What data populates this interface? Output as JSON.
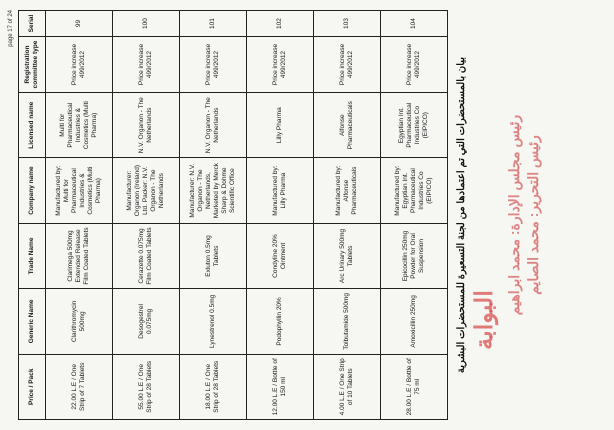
{
  "header": {
    "page": "page 17 of 24"
  },
  "table": {
    "columns": [
      "Serial",
      "Registration committee type",
      "Licensed name",
      "Company name",
      "Trade Name",
      "Generic Name",
      "Price / Pack"
    ],
    "rows": [
      [
        "99",
        "Price increase 499/2012",
        "Multi for Pharmaceutical Industries & Cosmetics (Multi Pharma)",
        "Manufactured by: Multi for Pharmaceutical Industries & Cosmetics (Multi Pharma)",
        "Clarimega 500mg Extended Release Film Coated Tablets",
        "Clarithromycin 500mg",
        "22.00 L.E / One Strip of 7 Tablets"
      ],
      [
        "100",
        "Price increase 499/2012",
        "N.V. Organon - The Netherlands",
        "Manufacturer: Organon (Ireland) Ltd. Packer: N.V. Organon - The Netherlands",
        "Cerazette 0.075mg Film Coated Tablets",
        "Desogestrel 0.075mg",
        "55.00 L.E / One Strip of 28 Tablets"
      ],
      [
        "101",
        "Price increase 499/2012",
        "N.V. Organon - The Netherlands",
        "Manufacturer: N.V. Organon - The Netherlands, Marketed by Merck Sharp & Dohme Scientific Office",
        "Exluton 0.5mg Tablets",
        "Lynestrenol 0.5mg",
        "18.00 L.E / One Strip of 28 Tablets"
      ],
      [
        "102",
        "Price increase 499/2012",
        "Lilly Pharma",
        "Manufactured by: Lilly Pharma",
        "Condyline 20% Ointment",
        "Podophyllin 20%",
        "12.00 L.E / Bottle of 150 ml"
      ],
      [
        "103",
        "Price increase 499/2012",
        "Alfonse Pharmaceuticals",
        "Manufactured by: Alfonse Pharmaceuticals",
        "Arc Urinary 500mg Tablets",
        "Tolbutamide 500mg",
        "4.00 L.E / One Strip of 10 Tablets"
      ],
      [
        "104",
        "Price increase 499/2012",
        "Egyptian Int. Pharmaceutical Industries Co (EIPICO)",
        "Manufactured by: Egyptian Int. Pharmaceutical Industries Co (EIPICO)",
        "Epicocillin 250mg Powder for Oral Suspension",
        "Amoxicillin 250mg",
        "28.00 L.E / Bottle of 75 ml"
      ]
    ]
  },
  "title": "بيان بالمستحضرات التي تم اعتمادها من لجنة التسعيرة للمستحضرات البشرية",
  "logo": "البوابة",
  "watermark": [
    "رئيس مجلس الإدارة: محمد ابراهيم",
    "رئيس التحرير: محمد الصايم"
  ]
}
